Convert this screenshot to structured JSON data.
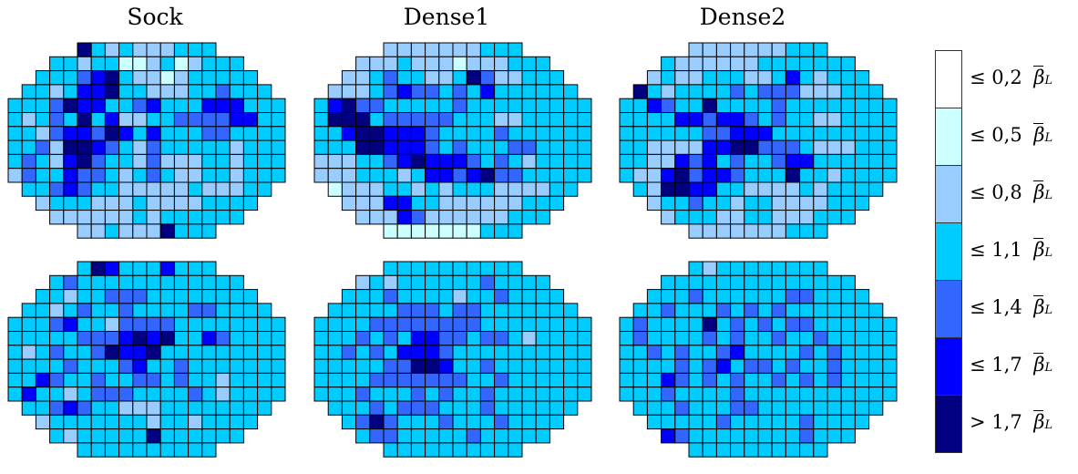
{
  "titles": [
    "Sock",
    "Dense1",
    "Dense2"
  ],
  "colors": {
    "c0": "#ffffff",
    "c1": "#ccffff",
    "c2": "#99ccff",
    "c3": "#00ccff",
    "c4": "#3366ff",
    "c5": "#0000ff",
    "c6": "#000080"
  },
  "legend": [
    {
      "op": "≤",
      "value": "0,2",
      "symbol": "β",
      "sub": "L",
      "color": "#ffffff"
    },
    {
      "op": "≤",
      "value": "0,5",
      "symbol": "β",
      "sub": "L",
      "color": "#ccffff"
    },
    {
      "op": "≤",
      "value": "0,8",
      "symbol": "β",
      "sub": "L",
      "color": "#99ccff"
    },
    {
      "op": "≤",
      "value": "1,1",
      "symbol": "β",
      "sub": "L",
      "color": "#00ccff"
    },
    {
      "op": "≤",
      "value": "1,4",
      "symbol": "β",
      "sub": "L",
      "color": "#3366ff"
    },
    {
      "op": "≤",
      "value": "1,7",
      "symbol": "β",
      "sub": "L",
      "color": "#0000ff"
    },
    {
      "op": ">",
      "value": "1,7",
      "symbol": "β",
      "sub": "L",
      "color": "#000080"
    }
  ],
  "chart_data": {
    "type": "heatmap",
    "grid_columns": 20,
    "grid_rows": 14,
    "row_extents": [
      [
        5,
        14
      ],
      [
        3,
        16
      ],
      [
        2,
        17
      ],
      [
        1,
        18
      ],
      [
        0,
        19
      ],
      [
        0,
        19
      ],
      [
        0,
        19
      ],
      [
        0,
        19
      ],
      [
        0,
        19
      ],
      [
        0,
        19
      ],
      [
        1,
        18
      ],
      [
        2,
        17
      ],
      [
        3,
        16
      ],
      [
        5,
        14
      ]
    ],
    "class_thresholds": [
      "≤ 0,2",
      "≤ 0,5",
      "≤ 0,8",
      "≤ 1,1",
      "≤ 1,4",
      "≤ 1,7",
      "> 1,7"
    ],
    "maps": [
      {
        "title": "Sock",
        "row": "top",
        "cells": [
          ".....6323222........",
          "...33233112312......",
          "..3334563221233.....",
          ".332355633222334....",
          "33346553345333555...",
          "323436352233444455..",
          "33245546535333443...",
          "33426654324333332...",
          "34325643324222332...",
          "24335443234322332...",
          ".3345433222223222...",
          "..23332223222233....",
          "...22222232333......",
          ".....2232226........"
        ]
      },
      {
        "title": "Dense1",
        "row": "top",
        "cells": [
          ".....2222222........",
          "...22232221222......",
          "..2234332236422.....",
          ".222345443435333....",
          "3564433333433333....",
          "366634444433322.....",
          "33566555433334333...",
          "3336655543433344....",
          "2223345655543432....",
          "2223332355456443....",
          ".1222332323332222...",
          "..2225533222222.....",
          "...22254222222......",
          ".....1111111........"
        ]
      },
      {
        "title": "Dense2",
        "row": "top",
        "cells": [
          ".....2222222........",
          "...32222223333......",
          "..2322333223532.....",
          ".632333343444222....",
          "3354336333343333....",
          "3333554554343322....",
          "33333344555333333...",
          "33222255664443222...",
          "33225453433455333...",
          "3225645543336332....",
          ".32665533222232.....",
          "..2334332332222.....",
          "...23332233222......",
          ".....2222222........"
        ]
      },
      {
        "title": "Sock",
        "row": "bottom",
        "cells": [
          ".....3653335........",
          "...34333333333......",
          "..3323344433333.....",
          ".332343343333443....",
          "3334533244443333....",
          "3333344456563354....",
          "32343346556333333...",
          "33334333453343333...",
          "33543343344343323...",
          "35332344433334323...",
          ".3345433222333333...",
          "..2333333323323.....",
          "...32333336333......",
          ".....3333333........"
        ]
      },
      {
        "title": "Dense1",
        "row": "bottom",
        "cells": [
          ".....3333333........",
          "...23233333343......",
          "..3334333323343.....",
          ".333334443443333....",
          "3333444444443333....",
          "3334343554434432....",
          "33434355543333333...",
          "33333446653343333...",
          "33334444444334333...",
          "33343334343343333...",
          ".3334344433343333...",
          "..3464333433343.....",
          "...34433333433......",
          ".....3333333........"
        ]
      },
      {
        "title": "Dense2",
        "row": "bottom",
        "cells": [
          ".....3233333........",
          "...33333333333......",
          "..3334333333443.....",
          ".334333434343333....",
          "3433336343434433....",
          "3433334343343343....",
          "33434334533334343...",
          "33334345344343343...",
          "33354343433434343...",
          "33343333433333333...",
          ".3334333443333333...",
          "..3333343333343.....",
          "...54333333334......",
          ".....3333333........"
        ]
      }
    ]
  }
}
